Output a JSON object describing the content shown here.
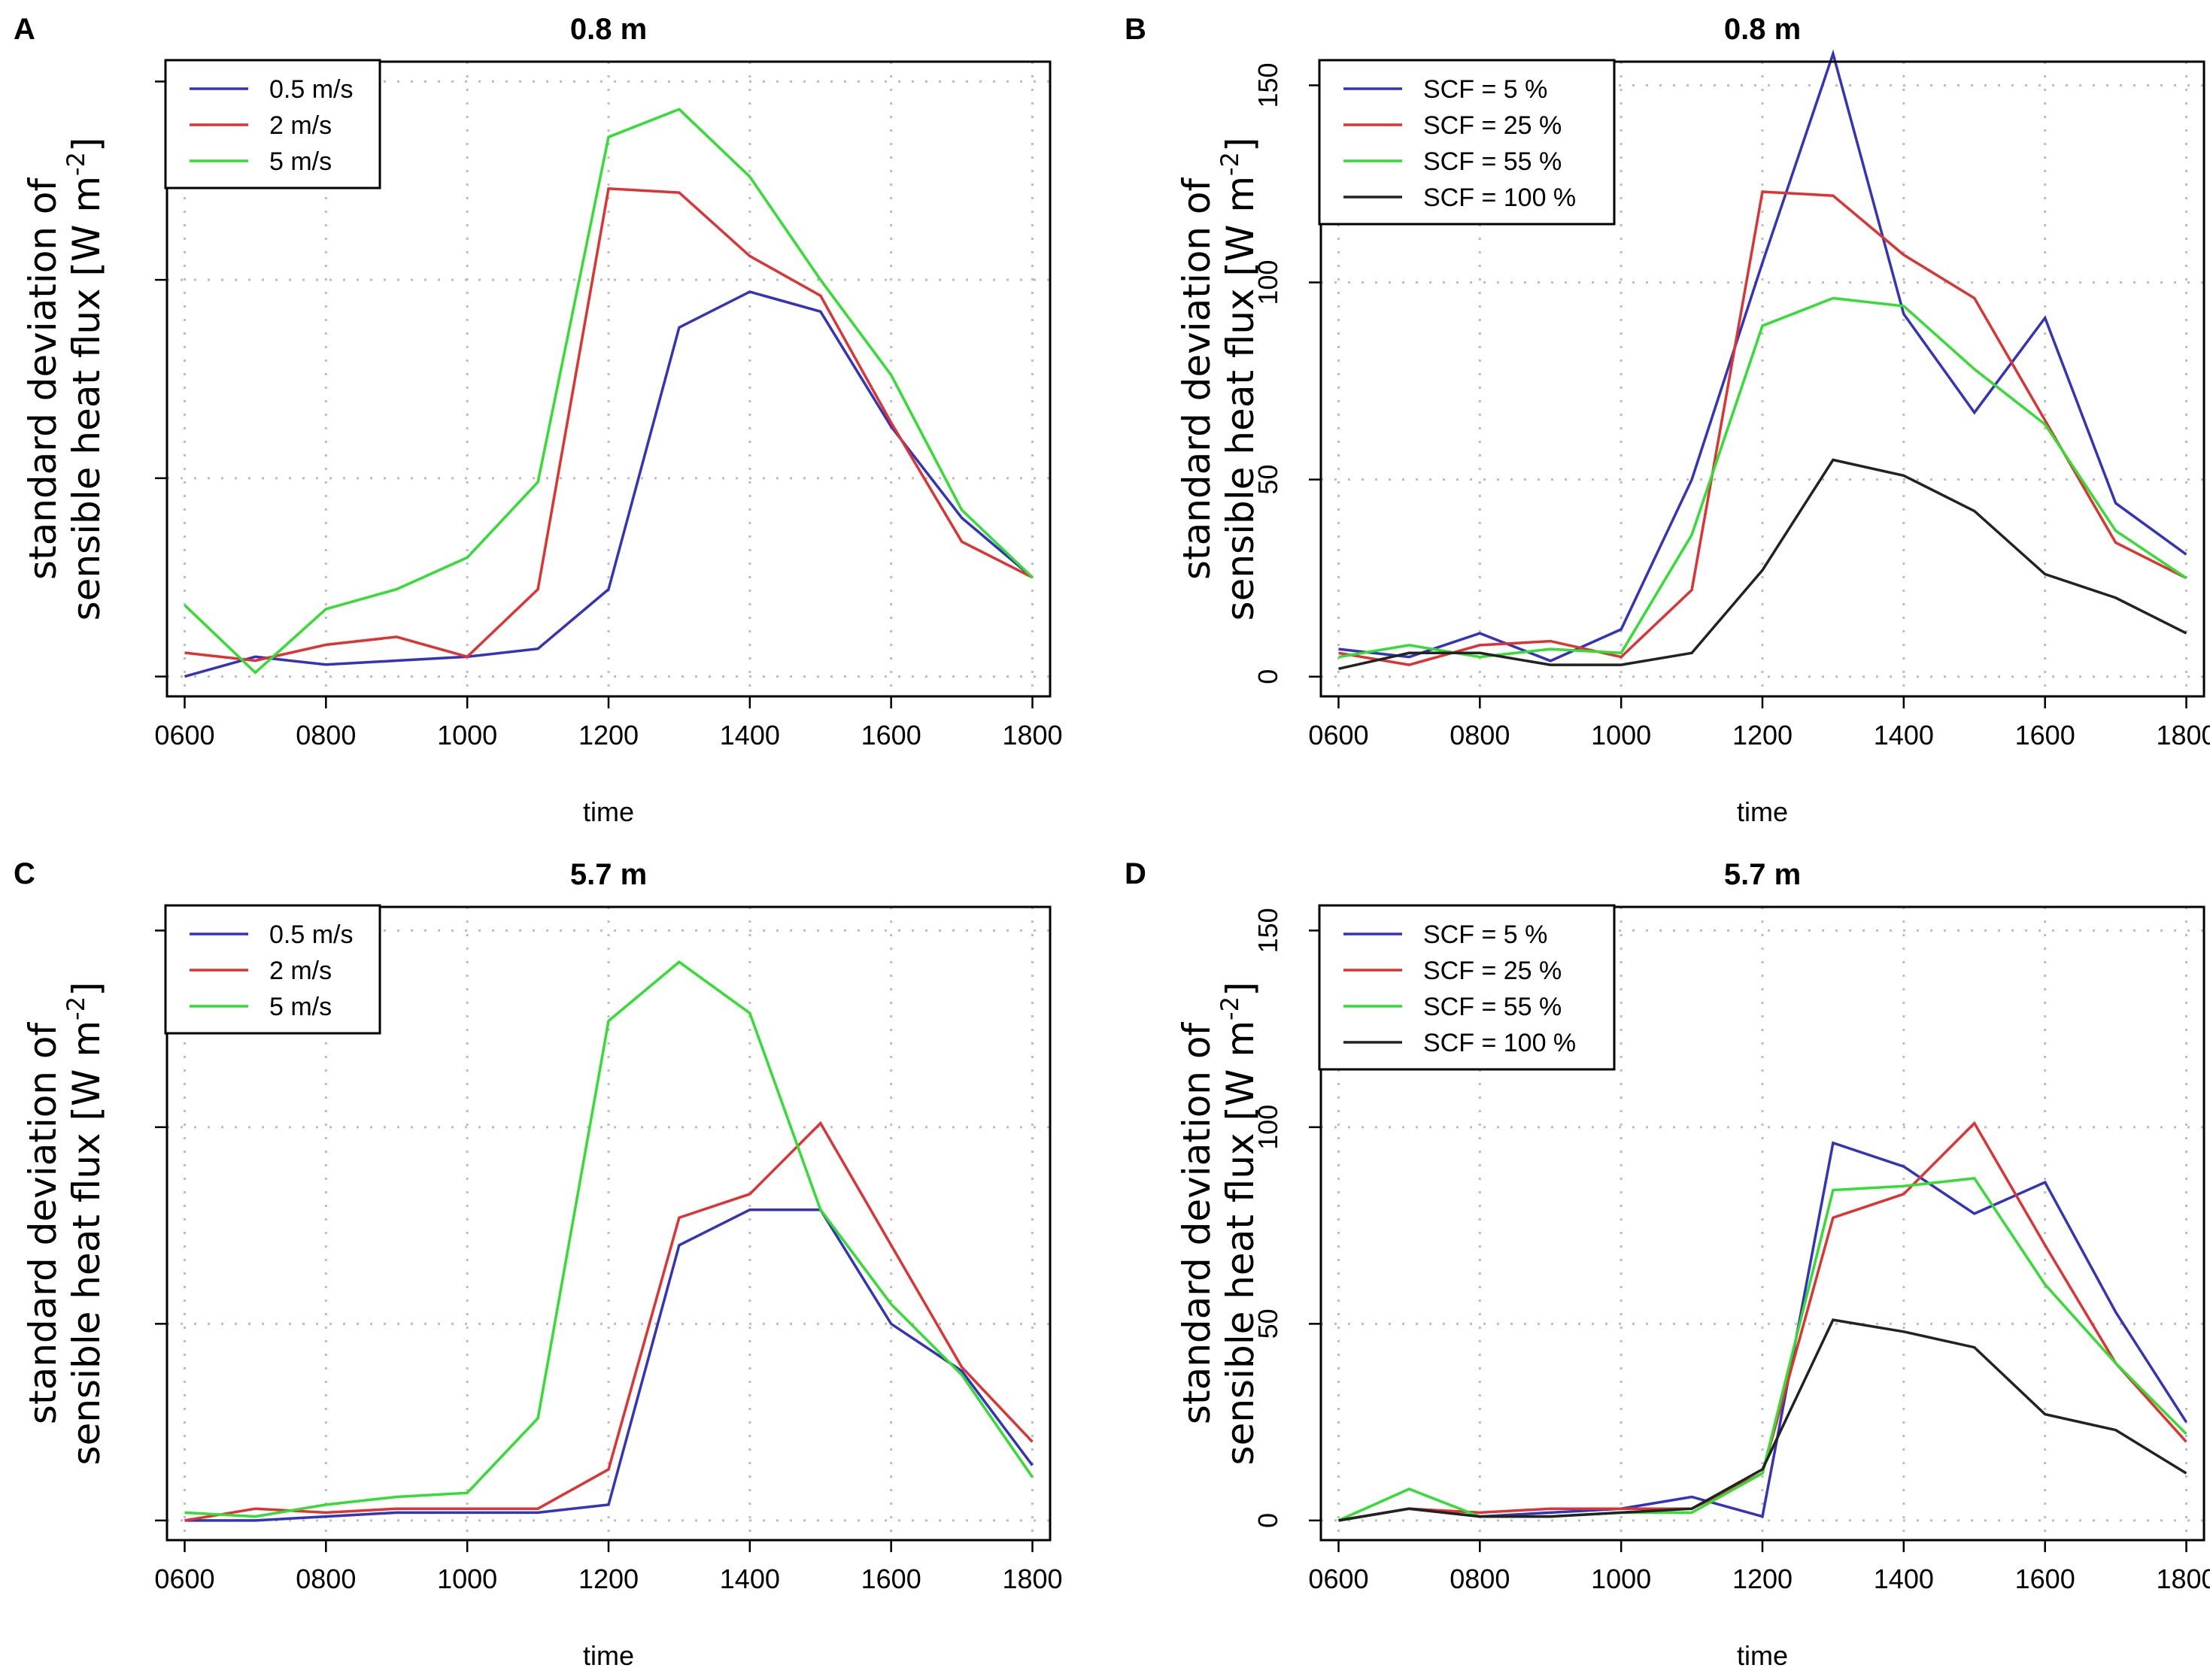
{
  "chart_data": [
    {
      "type": "line",
      "panel": "A",
      "title": "0.8 m",
      "xlabel": "time",
      "ylabel": [
        "standard deviation of",
        "sensible heat flux [W m",
        "-2",
        "]"
      ],
      "x": [
        600,
        700,
        800,
        900,
        1000,
        1100,
        1200,
        1300,
        1400,
        1500,
        1600,
        1700,
        1800
      ],
      "x_ticks": [
        600,
        800,
        1000,
        1200,
        1400,
        1600,
        1800
      ],
      "x_tick_labels": [
        "0600",
        "0800",
        "1000",
        "1200",
        "1400",
        "1600",
        "1800"
      ],
      "xlim": [
        575,
        1825
      ],
      "ylim": [
        -5,
        155
      ],
      "y_ticks": [
        0,
        50,
        100,
        150
      ],
      "y_tick_labels": [
        "",
        "",
        "",
        ""
      ],
      "grid": true,
      "legend_position": "top-left",
      "series": [
        {
          "name": "0.5 m/s",
          "color": "#3333bb",
          "values": [
            0,
            5,
            3,
            4,
            5,
            7,
            22,
            88,
            97,
            92,
            63,
            40,
            25
          ]
        },
        {
          "name": "2 m/s",
          "color": "#dd3333",
          "values": [
            6,
            4,
            8,
            10,
            5,
            22,
            123,
            122,
            106,
            96,
            64,
            34,
            25
          ]
        },
        {
          "name": "5 m/s",
          "color": "#33dd33",
          "values": [
            18,
            1,
            17,
            22,
            30,
            49,
            136,
            143,
            126,
            100,
            76,
            42,
            25
          ]
        }
      ]
    },
    {
      "type": "line",
      "panel": "B",
      "title": "0.8 m",
      "xlabel": "time",
      "ylabel": [
        "standard deviation of",
        "sensible heat flux [W m",
        "-2",
        "]"
      ],
      "x": [
        600,
        700,
        800,
        900,
        1000,
        1100,
        1200,
        1300,
        1400,
        1500,
        1600,
        1700,
        1800
      ],
      "x_ticks": [
        600,
        800,
        1000,
        1200,
        1400,
        1600,
        1800
      ],
      "x_tick_labels": [
        "0600",
        "0800",
        "1000",
        "1200",
        "1400",
        "1600",
        "1800"
      ],
      "xlim": [
        575,
        1825
      ],
      "ylim": [
        -5,
        156
      ],
      "y_ticks": [
        0,
        50,
        100,
        150
      ],
      "y_tick_labels": [
        "0",
        "50",
        "100",
        "150"
      ],
      "grid": true,
      "legend_position": "top-left",
      "series": [
        {
          "name": "SCF = 5 %",
          "color": "#3333bb",
          "values": [
            7,
            5,
            11,
            4,
            12,
            50,
            105,
            158,
            92,
            67,
            91,
            44,
            31
          ]
        },
        {
          "name": "SCF = 25 %",
          "color": "#dd3333",
          "values": [
            6,
            3,
            8,
            9,
            5,
            22,
            123,
            122,
            107,
            96,
            65,
            34,
            25
          ]
        },
        {
          "name": "SCF = 55 %",
          "color": "#33dd33",
          "values": [
            5,
            8,
            5,
            7,
            6,
            36,
            89,
            96,
            94,
            78,
            64,
            37,
            25
          ]
        },
        {
          "name": "SCF = 100 %",
          "color": "#222222",
          "values": [
            2,
            6,
            6,
            3,
            3,
            6,
            27,
            55,
            51,
            42,
            26,
            20,
            11
          ]
        }
      ]
    },
    {
      "type": "line",
      "panel": "C",
      "title": "5.7 m",
      "xlabel": "time",
      "ylabel": [
        "standard deviation of",
        "sensible heat flux [W m",
        "-2",
        "]"
      ],
      "x": [
        600,
        700,
        800,
        900,
        1000,
        1100,
        1200,
        1300,
        1400,
        1500,
        1600,
        1700,
        1800
      ],
      "x_ticks": [
        600,
        800,
        1000,
        1200,
        1400,
        1600,
        1800
      ],
      "x_tick_labels": [
        "0600",
        "0800",
        "1000",
        "1200",
        "1400",
        "1600",
        "1800"
      ],
      "xlim": [
        575,
        1825
      ],
      "ylim": [
        -5,
        156
      ],
      "y_ticks": [
        0,
        50,
        100,
        150
      ],
      "y_tick_labels": [
        "",
        "",
        "",
        ""
      ],
      "grid": true,
      "legend_position": "top-left",
      "series": [
        {
          "name": "0.5 m/s",
          "color": "#3333bb",
          "values": [
            0,
            0,
            1,
            2,
            2,
            2,
            4,
            70,
            79,
            79,
            50,
            38,
            14
          ]
        },
        {
          "name": "2 m/s",
          "color": "#dd3333",
          "values": [
            0,
            3,
            2,
            3,
            3,
            3,
            13,
            77,
            83,
            101,
            70,
            39,
            20
          ]
        },
        {
          "name": "5 m/s",
          "color": "#33dd33",
          "values": [
            2,
            1,
            4,
            6,
            7,
            26,
            127,
            142,
            129,
            79,
            55,
            37,
            11
          ]
        }
      ]
    },
    {
      "type": "line",
      "panel": "D",
      "title": "5.7 m",
      "xlabel": "time",
      "ylabel": [
        "standard deviation of",
        "sensible heat flux [W m",
        "-2",
        "]"
      ],
      "x": [
        600,
        700,
        800,
        900,
        1000,
        1100,
        1200,
        1300,
        1400,
        1500,
        1600,
        1700,
        1800
      ],
      "x_ticks": [
        600,
        800,
        1000,
        1200,
        1400,
        1600,
        1800
      ],
      "x_tick_labels": [
        "0600",
        "0800",
        "1000",
        "1200",
        "1400",
        "1600",
        "1800"
      ],
      "xlim": [
        575,
        1825
      ],
      "ylim": [
        -5,
        156
      ],
      "y_ticks": [
        0,
        50,
        100,
        150
      ],
      "y_tick_labels": [
        "0",
        "50",
        "100",
        "150"
      ],
      "grid": true,
      "legend_position": "top-left",
      "series": [
        {
          "name": "SCF = 5 %",
          "color": "#3333bb",
          "values": [
            0,
            3,
            1,
            2,
            3,
            6,
            1,
            96,
            90,
            78,
            86,
            53,
            25
          ]
        },
        {
          "name": "SCF = 25 %",
          "color": "#dd3333",
          "values": [
            0,
            3,
            2,
            3,
            3,
            3,
            12,
            77,
            83,
            101,
            70,
            40,
            20
          ]
        },
        {
          "name": "SCF = 55 %",
          "color": "#33dd33",
          "values": [
            0,
            8,
            1,
            1,
            2,
            2,
            12,
            84,
            85,
            87,
            60,
            40,
            22
          ]
        },
        {
          "name": "SCF = 100 %",
          "color": "#222222",
          "values": [
            0,
            3,
            1,
            1,
            2,
            3,
            13,
            51,
            48,
            44,
            27,
            23,
            12
          ]
        }
      ]
    }
  ]
}
